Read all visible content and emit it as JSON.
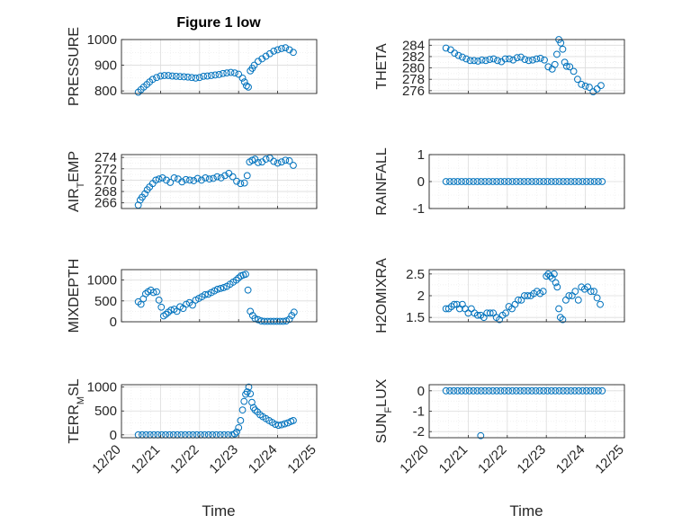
{
  "figure": {
    "title": "Figure 1 low",
    "xlabel": "Time"
  },
  "x_ticks": [
    "12/20",
    "12/21",
    "12/22",
    "12/23",
    "12/24",
    "12/25"
  ],
  "colors": {
    "marker": "#0072BD",
    "axis": "#262626",
    "grid": "#dcdcdc",
    "minor_grid": "#e9e9e9"
  },
  "chart_data": [
    {
      "type": "scatter",
      "ylabel": "PRESSURE",
      "ylim": [
        790,
        1000
      ],
      "yticks": [
        800,
        900,
        1000
      ],
      "yminor": [
        850,
        950
      ],
      "show_x_ticklabels": false,
      "x": [
        20.43,
        20.5,
        20.57,
        20.65,
        20.72,
        20.8,
        20.9,
        21.0,
        21.1,
        21.2,
        21.3,
        21.4,
        21.5,
        21.6,
        21.7,
        21.8,
        21.9,
        22.0,
        22.1,
        22.2,
        22.3,
        22.4,
        22.5,
        22.6,
        22.7,
        22.8,
        22.9,
        23.0,
        23.1,
        23.15,
        23.2,
        23.25,
        23.3,
        23.35,
        23.4,
        23.5,
        23.6,
        23.7,
        23.8,
        23.9,
        24.0,
        24.1,
        24.2,
        24.3,
        24.4
      ],
      "y": [
        795,
        805,
        815,
        825,
        835,
        845,
        852,
        858,
        860,
        860,
        858,
        857,
        856,
        855,
        854,
        852,
        850,
        852,
        857,
        858,
        860,
        862,
        864,
        868,
        870,
        872,
        870,
        865,
        850,
        835,
        820,
        815,
        878,
        888,
        900,
        915,
        925,
        935,
        945,
        955,
        960,
        965,
        968,
        960,
        950
      ]
    },
    {
      "type": "scatter",
      "ylabel": "THETA",
      "ylim": [
        275.5,
        285
      ],
      "yticks": [
        276,
        278,
        280,
        282,
        284
      ],
      "yminor": [
        277,
        279,
        281,
        283
      ],
      "show_x_ticklabels": false,
      "x": [
        20.43,
        20.55,
        20.65,
        20.75,
        20.85,
        20.95,
        21.05,
        21.15,
        21.25,
        21.35,
        21.45,
        21.55,
        21.65,
        21.75,
        21.85,
        21.95,
        22.05,
        22.15,
        22.25,
        22.35,
        22.45,
        22.55,
        22.65,
        22.75,
        22.85,
        22.95,
        23.05,
        23.15,
        23.22,
        23.27,
        23.32,
        23.37,
        23.42,
        23.47,
        23.52,
        23.6,
        23.7,
        23.8,
        23.9,
        24.0,
        24.1,
        24.2,
        24.3,
        24.4
      ],
      "y": [
        283.5,
        283.2,
        282.6,
        282.2,
        281.9,
        281.6,
        281.3,
        281.3,
        281.2,
        281.4,
        281.3,
        281.5,
        281.6,
        281.3,
        281.1,
        281.6,
        281.6,
        281.4,
        281.8,
        281.9,
        281.5,
        281.3,
        281.4,
        281.6,
        281.7,
        281.4,
        280.2,
        279.8,
        280.6,
        282.4,
        285.0,
        284.4,
        283.3,
        281.0,
        280.3,
        280.2,
        279.4,
        278.0,
        277.1,
        276.8,
        276.6,
        275.8,
        276.3,
        276.9
      ]
    },
    {
      "type": "scatter",
      "ylabel": "AIR_TEMP",
      "ylim": [
        265,
        274.5
      ],
      "yticks": [
        266,
        268,
        270,
        272,
        274
      ],
      "yminor": [
        267,
        269,
        271,
        273
      ],
      "show_x_ticklabels": false,
      "x": [
        20.43,
        20.48,
        20.53,
        20.6,
        20.66,
        20.72,
        20.8,
        20.88,
        20.96,
        21.05,
        21.15,
        21.25,
        21.35,
        21.45,
        21.55,
        21.65,
        21.75,
        21.85,
        21.95,
        22.05,
        22.15,
        22.25,
        22.35,
        22.45,
        22.55,
        22.65,
        22.75,
        22.85,
        22.95,
        23.05,
        23.15,
        23.22,
        23.28,
        23.35,
        23.42,
        23.5,
        23.6,
        23.7,
        23.8,
        23.9,
        24.0,
        24.1,
        24.2,
        24.3,
        24.4
      ],
      "y": [
        265.6,
        266.5,
        267.0,
        267.6,
        268.3,
        268.8,
        269.4,
        270.0,
        270.2,
        270.4,
        270.0,
        269.6,
        270.4,
        270.2,
        269.7,
        270.1,
        270.0,
        269.9,
        270.3,
        270.0,
        270.4,
        270.2,
        270.3,
        270.6,
        270.4,
        270.8,
        271.2,
        270.6,
        269.8,
        269.4,
        269.5,
        270.8,
        273.2,
        273.5,
        273.7,
        273.1,
        273.2,
        273.7,
        273.9,
        273.3,
        273.0,
        273.2,
        273.5,
        273.4,
        272.6
      ]
    },
    {
      "type": "scatter",
      "ylabel": "RAINFALL",
      "ylim": [
        -1,
        1
      ],
      "yticks": [
        -1,
        0,
        1
      ],
      "yminor": [
        -0.5,
        0.5
      ],
      "show_x_ticklabels": false,
      "x": [
        20.43,
        20.53,
        20.63,
        20.73,
        20.83,
        20.93,
        21.03,
        21.13,
        21.23,
        21.33,
        21.43,
        21.53,
        21.63,
        21.73,
        21.83,
        21.93,
        22.03,
        22.13,
        22.23,
        22.33,
        22.43,
        22.53,
        22.63,
        22.73,
        22.83,
        22.93,
        23.03,
        23.13,
        23.23,
        23.33,
        23.43,
        23.53,
        23.63,
        23.73,
        23.83,
        23.93,
        24.03,
        24.13,
        24.23,
        24.33,
        24.43
      ],
      "y": [
        0,
        0,
        0,
        0,
        0,
        0,
        0,
        0,
        0,
        0,
        0,
        0,
        0,
        0,
        0,
        0,
        0,
        0,
        0,
        0,
        0,
        0,
        0,
        0,
        0,
        0,
        0,
        0,
        0,
        0,
        0,
        0,
        0,
        0,
        0,
        0,
        0,
        0,
        0,
        0,
        0
      ]
    },
    {
      "type": "scatter",
      "ylabel": "MIXDEPTH",
      "ylim": [
        0,
        1250
      ],
      "yticks": [
        0,
        500,
        1000
      ],
      "yminor": [
        250,
        750
      ],
      "show_x_ticklabels": false,
      "x": [
        20.43,
        20.5,
        20.56,
        20.62,
        20.68,
        20.75,
        20.82,
        20.9,
        20.96,
        21.02,
        21.08,
        21.14,
        21.2,
        21.27,
        21.35,
        21.42,
        21.5,
        21.58,
        21.66,
        21.74,
        21.82,
        21.9,
        21.98,
        22.06,
        22.14,
        22.22,
        22.3,
        22.38,
        22.46,
        22.54,
        22.62,
        22.7,
        22.78,
        22.86,
        22.94,
        23.0,
        23.06,
        23.12,
        23.18,
        23.24,
        23.3,
        23.36,
        23.42,
        23.5,
        23.58,
        23.66,
        23.74,
        23.82,
        23.9,
        23.98,
        24.06,
        24.14,
        24.22,
        24.3,
        24.36,
        24.42
      ],
      "y": [
        480,
        420,
        550,
        670,
        720,
        760,
        700,
        720,
        520,
        350,
        140,
        180,
        230,
        280,
        300,
        250,
        360,
        320,
        420,
        460,
        400,
        520,
        560,
        600,
        650,
        660,
        700,
        740,
        780,
        800,
        820,
        850,
        900,
        950,
        1000,
        1050,
        1100,
        1120,
        1140,
        760,
        250,
        150,
        80,
        50,
        20,
        10,
        10,
        10,
        10,
        10,
        10,
        10,
        20,
        60,
        150,
        230
      ]
    },
    {
      "type": "scatter",
      "ylabel": "H2OMIXRA",
      "ylim": [
        1.4,
        2.6
      ],
      "yticks": [
        1.5,
        2,
        2.5
      ],
      "yminor": [
        1.75,
        2.25
      ],
      "show_x_ticklabels": false,
      "x": [
        20.43,
        20.5,
        20.57,
        20.64,
        20.71,
        20.78,
        20.85,
        20.92,
        21.0,
        21.08,
        21.16,
        21.24,
        21.32,
        21.4,
        21.48,
        21.56,
        21.64,
        21.72,
        21.8,
        21.88,
        21.96,
        22.04,
        22.12,
        22.2,
        22.28,
        22.36,
        22.44,
        22.52,
        22.6,
        22.68,
        22.76,
        22.84,
        22.92,
        23.0,
        23.05,
        23.1,
        23.15,
        23.2,
        23.24,
        23.28,
        23.32,
        23.36,
        23.42,
        23.5,
        23.58,
        23.66,
        23.74,
        23.82,
        23.9,
        23.98,
        24.06,
        24.14,
        24.22,
        24.3,
        24.38
      ],
      "y": [
        1.7,
        1.7,
        1.75,
        1.8,
        1.8,
        1.7,
        1.8,
        1.7,
        1.6,
        1.7,
        1.6,
        1.55,
        1.55,
        1.5,
        1.6,
        1.6,
        1.6,
        1.5,
        1.45,
        1.55,
        1.6,
        1.75,
        1.7,
        1.8,
        1.9,
        1.9,
        2.0,
        2.0,
        2.0,
        2.05,
        2.1,
        2.05,
        2.1,
        2.45,
        2.5,
        2.45,
        2.4,
        2.5,
        2.3,
        2.2,
        1.7,
        1.5,
        1.45,
        1.9,
        2.0,
        2.0,
        2.1,
        1.9,
        2.2,
        2.15,
        2.2,
        2.1,
        2.1,
        1.95,
        1.8
      ]
    },
    {
      "type": "scatter",
      "ylabel": "TERR_MSL",
      "ylim": [
        -60,
        1050
      ],
      "yticks": [
        0,
        500,
        1000
      ],
      "yminor": [
        250,
        750
      ],
      "show_x_ticklabels": true,
      "x": [
        20.43,
        20.53,
        20.63,
        20.73,
        20.83,
        20.93,
        21.03,
        21.13,
        21.23,
        21.33,
        21.43,
        21.53,
        21.63,
        21.73,
        21.83,
        21.93,
        22.03,
        22.13,
        22.23,
        22.33,
        22.43,
        22.53,
        22.63,
        22.73,
        22.83,
        22.9,
        22.95,
        23.0,
        23.05,
        23.1,
        23.14,
        23.18,
        23.22,
        23.26,
        23.3,
        23.34,
        23.38,
        23.42,
        23.48,
        23.55,
        23.62,
        23.7,
        23.78,
        23.86,
        23.94,
        24.02,
        24.1,
        24.18,
        24.26,
        24.34,
        24.4
      ],
      "y": [
        0,
        0,
        0,
        0,
        0,
        0,
        0,
        0,
        0,
        0,
        0,
        0,
        0,
        0,
        0,
        0,
        0,
        0,
        0,
        0,
        0,
        0,
        0,
        0,
        0,
        20,
        60,
        150,
        300,
        520,
        700,
        850,
        900,
        1000,
        860,
        680,
        570,
        520,
        480,
        420,
        380,
        340,
        300,
        260,
        220,
        200,
        210,
        230,
        250,
        280,
        300
      ]
    },
    {
      "type": "scatter",
      "ylabel": "SUN_FLUX",
      "ylim": [
        -2.3,
        0.3
      ],
      "yticks": [
        -2,
        -1,
        0
      ],
      "yminor": [
        -1.5,
        -0.5
      ],
      "show_x_ticklabels": true,
      "x": [
        20.43,
        20.53,
        20.63,
        20.73,
        20.83,
        20.93,
        21.03,
        21.13,
        21.23,
        21.33,
        21.43,
        21.53,
        21.63,
        21.73,
        21.83,
        21.93,
        22.03,
        22.13,
        22.23,
        22.33,
        22.43,
        22.53,
        22.63,
        22.73,
        22.83,
        22.93,
        23.03,
        23.13,
        23.23,
        23.33,
        23.43,
        23.53,
        23.63,
        23.73,
        23.83,
        23.93,
        24.03,
        24.13,
        24.23,
        24.33,
        24.43,
        21.32
      ],
      "y": [
        0,
        0,
        0,
        0,
        0,
        0,
        0,
        0,
        0,
        0,
        0,
        0,
        0,
        0,
        0,
        0,
        0,
        0,
        0,
        0,
        0,
        0,
        0,
        0,
        0,
        0,
        0,
        0,
        0,
        0,
        0,
        0,
        0,
        0,
        0,
        0,
        0,
        0,
        0,
        0,
        0,
        -2.2
      ]
    }
  ]
}
